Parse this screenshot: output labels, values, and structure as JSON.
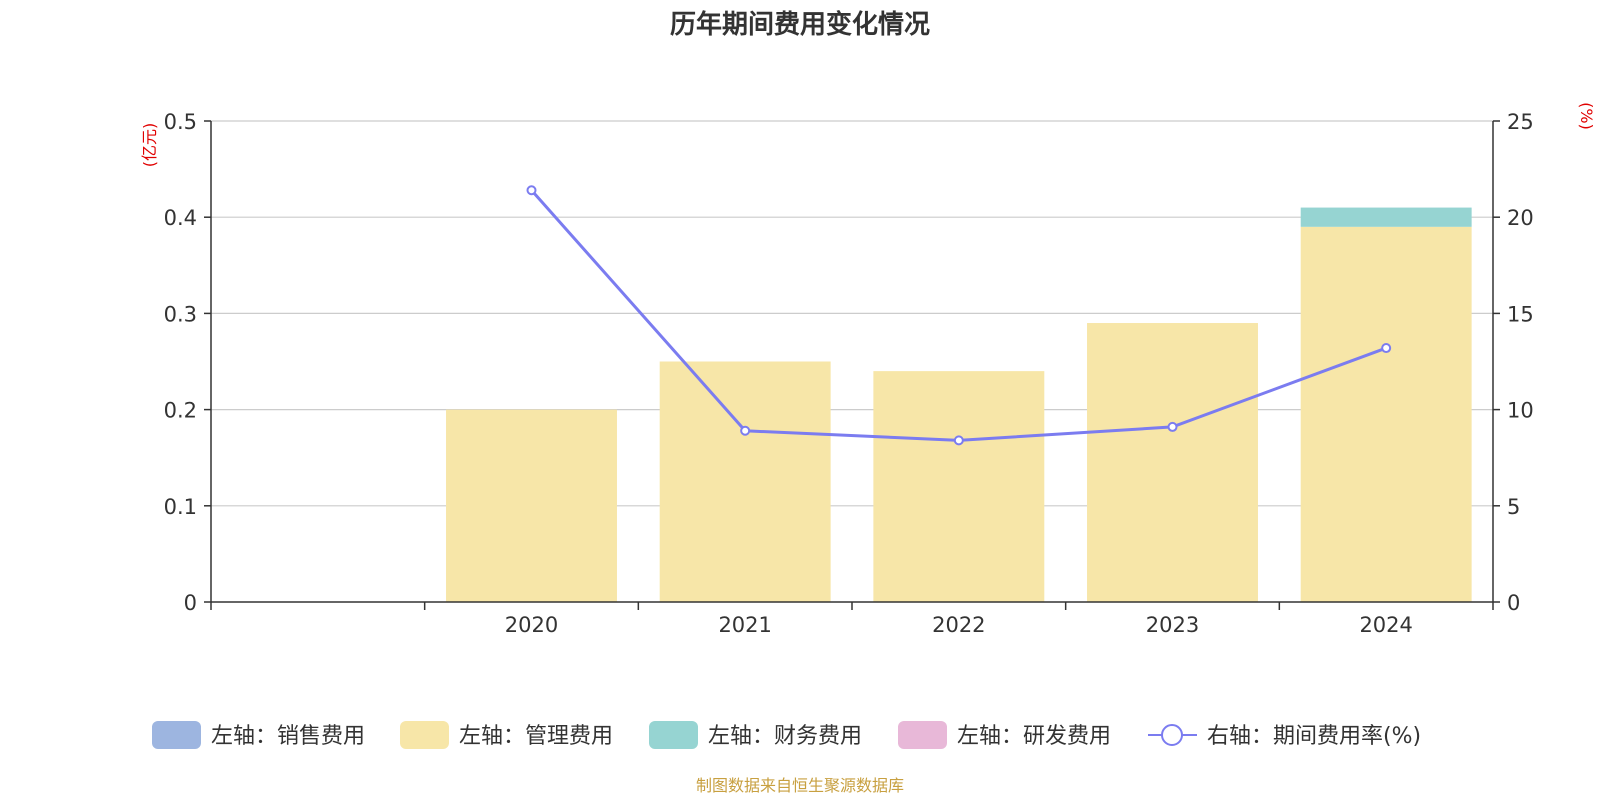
{
  "chart_data": {
    "type": "bar",
    "title": "历年期间费用变化情况",
    "categories": [
      "",
      "2020",
      "2021",
      "2022",
      "2023",
      "2024"
    ],
    "left_axis": {
      "unit": "(亿元)",
      "ylim": [
        0,
        0.5
      ],
      "ticks": [
        "0",
        "0.1",
        "0.2",
        "0.3",
        "0.4",
        "0.5"
      ]
    },
    "right_axis": {
      "unit": "(%)",
      "ylim": [
        0,
        25
      ],
      "ticks": [
        "0",
        "5",
        "10",
        "15",
        "20",
        "25"
      ]
    },
    "stacked": true,
    "series": [
      {
        "name": "左轴：销售费用",
        "axis": "left",
        "type": "bar",
        "color": "#9db5e0",
        "values": [
          null,
          0,
          0,
          0,
          0,
          0
        ]
      },
      {
        "name": "左轴：管理费用",
        "axis": "left",
        "type": "bar",
        "color": "#f7e6a8",
        "values": [
          null,
          0.2,
          0.25,
          0.24,
          0.29,
          0.39
        ]
      },
      {
        "name": "左轴：财务费用",
        "axis": "left",
        "type": "bar",
        "color": "#96d4d2",
        "values": [
          null,
          0,
          0,
          0,
          0,
          0.02
        ]
      },
      {
        "name": "左轴：研发费用",
        "axis": "left",
        "type": "bar",
        "color": "#e8b8d8",
        "values": [
          null,
          0,
          0,
          0,
          0,
          0
        ]
      },
      {
        "name": "右轴：期间费用率(%)",
        "axis": "right",
        "type": "line",
        "color": "#7b7cf0",
        "values": [
          null,
          21.4,
          8.9,
          8.4,
          9.1,
          13.2
        ]
      }
    ],
    "grid": true,
    "legend_position": "bottom"
  },
  "footer": {
    "source": "制图数据来自恒生聚源数据库"
  }
}
